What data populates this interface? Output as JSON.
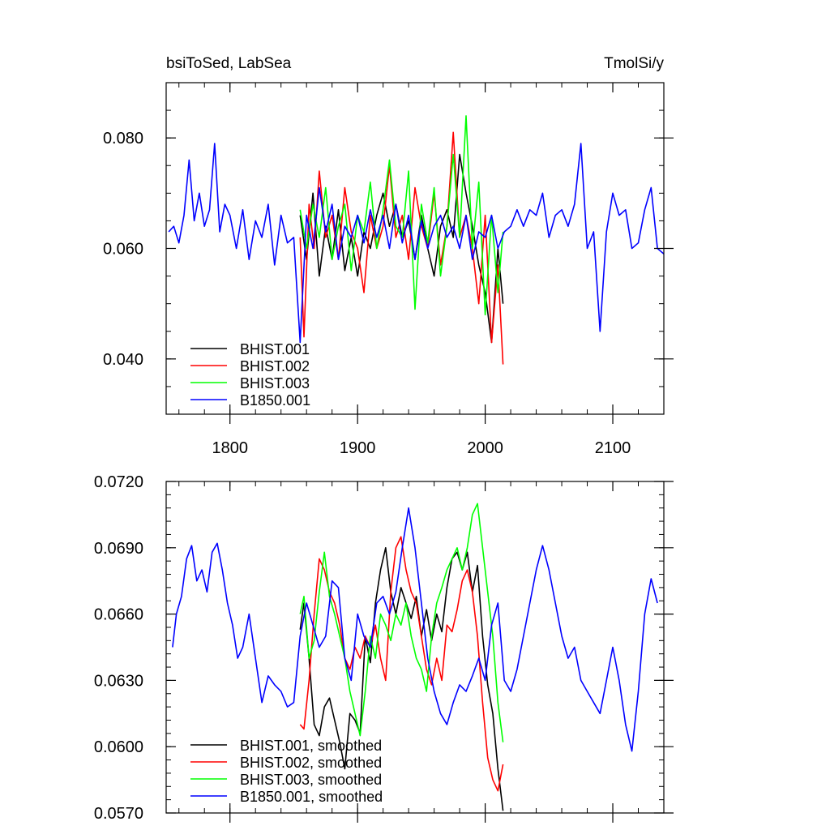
{
  "chart_data": [
    {
      "type": "line",
      "title_left": "bsiToSed, LabSea",
      "title_right": "TmolSi/y",
      "xlabel": "",
      "ylabel": "",
      "xlim": [
        1750,
        2140
      ],
      "ylim": [
        0.03,
        0.09
      ],
      "x_ticks": [
        1800,
        1900,
        2000,
        2100
      ],
      "x_tick_labels": [
        "1800",
        "1900",
        "2000",
        "2100"
      ],
      "y_ticks": [
        0.04,
        0.06,
        0.08
      ],
      "y_tick_labels": [
        "0.040",
        "0.060",
        "0.080"
      ],
      "grid": false,
      "legend_position": "bottom-left",
      "series": [
        {
          "name": "BHIST.001",
          "color": "#000000",
          "x": [
            1855,
            1860,
            1865,
            1870,
            1875,
            1880,
            1885,
            1890,
            1895,
            1900,
            1905,
            1910,
            1915,
            1920,
            1925,
            1930,
            1935,
            1940,
            1945,
            1950,
            1955,
            1960,
            1965,
            1970,
            1975,
            1980,
            1985,
            1990,
            1995,
            2000,
            2005,
            2010,
            2014
          ],
          "values": [
            0.066,
            0.058,
            0.07,
            0.055,
            0.064,
            0.058,
            0.067,
            0.056,
            0.062,
            0.055,
            0.063,
            0.06,
            0.066,
            0.07,
            0.064,
            0.068,
            0.062,
            0.065,
            0.058,
            0.066,
            0.06,
            0.055,
            0.064,
            0.067,
            0.062,
            0.077,
            0.07,
            0.064,
            0.057,
            0.052,
            0.043,
            0.06,
            0.05
          ]
        },
        {
          "name": "BHIST.002",
          "color": "#ff0000",
          "x": [
            1855,
            1858,
            1862,
            1866,
            1870,
            1875,
            1880,
            1885,
            1890,
            1895,
            1900,
            1905,
            1910,
            1915,
            1920,
            1925,
            1930,
            1935,
            1940,
            1945,
            1950,
            1955,
            1960,
            1965,
            1970,
            1975,
            1980,
            1985,
            1990,
            1995,
            2000,
            2005,
            2010,
            2014
          ],
          "values": [
            0.062,
            0.044,
            0.068,
            0.06,
            0.074,
            0.062,
            0.066,
            0.058,
            0.071,
            0.063,
            0.06,
            0.052,
            0.066,
            0.06,
            0.064,
            0.075,
            0.062,
            0.066,
            0.058,
            0.071,
            0.064,
            0.06,
            0.07,
            0.057,
            0.064,
            0.081,
            0.062,
            0.066,
            0.06,
            0.05,
            0.066,
            0.043,
            0.057,
            0.039
          ]
        },
        {
          "name": "BHIST.003",
          "color": "#00ff00",
          "x": [
            1855,
            1860,
            1865,
            1870,
            1875,
            1880,
            1885,
            1890,
            1895,
            1900,
            1905,
            1910,
            1915,
            1920,
            1925,
            1930,
            1935,
            1940,
            1945,
            1950,
            1955,
            1960,
            1965,
            1970,
            1975,
            1980,
            1985,
            1990,
            1995,
            2000,
            2005,
            2010,
            2014
          ],
          "values": [
            0.067,
            0.06,
            0.068,
            0.062,
            0.071,
            0.058,
            0.064,
            0.068,
            0.056,
            0.066,
            0.063,
            0.072,
            0.06,
            0.067,
            0.076,
            0.064,
            0.062,
            0.074,
            0.049,
            0.068,
            0.061,
            0.071,
            0.055,
            0.064,
            0.077,
            0.062,
            0.084,
            0.06,
            0.072,
            0.048,
            0.066,
            0.052,
            0.063
          ]
        },
        {
          "name": "B1850.001",
          "color": "#0000ff",
          "x": [
            1752,
            1756,
            1760,
            1764,
            1768,
            1772,
            1776,
            1780,
            1784,
            1788,
            1792,
            1796,
            1800,
            1805,
            1810,
            1815,
            1820,
            1825,
            1830,
            1835,
            1840,
            1845,
            1850,
            1855,
            1860,
            1865,
            1870,
            1875,
            1880,
            1885,
            1890,
            1895,
            1900,
            1905,
            1910,
            1915,
            1920,
            1925,
            1930,
            1935,
            1940,
            1945,
            1950,
            1955,
            1960,
            1965,
            1970,
            1975,
            1980,
            1985,
            1990,
            1995,
            2000,
            2005,
            2010,
            2015,
            2020,
            2025,
            2030,
            2035,
            2040,
            2045,
            2050,
            2055,
            2060,
            2065,
            2070,
            2075,
            2080,
            2085,
            2090,
            2095,
            2100,
            2105,
            2110,
            2115,
            2120,
            2125,
            2130,
            2135,
            2140
          ],
          "values": [
            0.063,
            0.064,
            0.061,
            0.066,
            0.076,
            0.065,
            0.07,
            0.064,
            0.067,
            0.079,
            0.063,
            0.068,
            0.066,
            0.06,
            0.067,
            0.058,
            0.065,
            0.062,
            0.068,
            0.057,
            0.066,
            0.061,
            0.062,
            0.043,
            0.066,
            0.06,
            0.071,
            0.063,
            0.068,
            0.058,
            0.064,
            0.062,
            0.066,
            0.061,
            0.067,
            0.062,
            0.066,
            0.06,
            0.068,
            0.061,
            0.066,
            0.058,
            0.065,
            0.06,
            0.064,
            0.066,
            0.062,
            0.064,
            0.06,
            0.066,
            0.058,
            0.063,
            0.062,
            0.066,
            0.06,
            0.063,
            0.064,
            0.067,
            0.064,
            0.067,
            0.066,
            0.07,
            0.062,
            0.066,
            0.067,
            0.064,
            0.068,
            0.079,
            0.06,
            0.063,
            0.045,
            0.063,
            0.07,
            0.066,
            0.067,
            0.06,
            0.061,
            0.067,
            0.071,
            0.06,
            0.059
          ]
        }
      ]
    },
    {
      "type": "line",
      "xlabel": "",
      "ylabel": "",
      "xlim": [
        1750,
        2140
      ],
      "ylim": [
        0.057,
        0.072
      ],
      "x_ticks": [
        1800,
        1900,
        2000,
        2100
      ],
      "y_ticks": [
        0.057,
        0.06,
        0.063,
        0.066,
        0.069,
        0.072
      ],
      "y_tick_labels": [
        "0.0570",
        "0.0600",
        "0.0630",
        "0.0660",
        "0.0690",
        "0.0720"
      ],
      "grid": false,
      "legend_position": "bottom-left",
      "series": [
        {
          "name": "BHIST.001, smoothed",
          "color": "#000000",
          "x": [
            1855,
            1858,
            1862,
            1866,
            1870,
            1874,
            1878,
            1882,
            1886,
            1890,
            1894,
            1898,
            1902,
            1906,
            1910,
            1914,
            1918,
            1922,
            1926,
            1930,
            1934,
            1938,
            1942,
            1946,
            1950,
            1954,
            1958,
            1962,
            1966,
            1970,
            1974,
            1978,
            1982,
            1986,
            1990,
            1994,
            1998,
            2002,
            2006,
            2010,
            2014
          ],
          "values": [
            0.0653,
            0.0665,
            0.064,
            0.061,
            0.0605,
            0.0618,
            0.0622,
            0.0612,
            0.0602,
            0.059,
            0.0615,
            0.0612,
            0.0606,
            0.065,
            0.0638,
            0.0665,
            0.068,
            0.069,
            0.067,
            0.066,
            0.0672,
            0.0665,
            0.0658,
            0.0668,
            0.065,
            0.0662,
            0.0648,
            0.066,
            0.0652,
            0.0672,
            0.0685,
            0.0688,
            0.068,
            0.0688,
            0.067,
            0.0682,
            0.065,
            0.0628,
            0.0615,
            0.059,
            0.0571
          ]
        },
        {
          "name": "BHIST.002, smoothed",
          "color": "#ff0000",
          "x": [
            1855,
            1858,
            1862,
            1866,
            1870,
            1874,
            1878,
            1882,
            1886,
            1890,
            1894,
            1898,
            1902,
            1906,
            1910,
            1914,
            1918,
            1922,
            1926,
            1930,
            1934,
            1938,
            1942,
            1946,
            1950,
            1954,
            1958,
            1962,
            1966,
            1970,
            1974,
            1978,
            1982,
            1986,
            1990,
            1994,
            1998,
            2002,
            2006,
            2010,
            2014
          ],
          "values": [
            0.061,
            0.0608,
            0.063,
            0.066,
            0.0685,
            0.068,
            0.067,
            0.0665,
            0.0655,
            0.064,
            0.0635,
            0.0645,
            0.064,
            0.065,
            0.0645,
            0.0655,
            0.064,
            0.063,
            0.067,
            0.069,
            0.0695,
            0.068,
            0.067,
            0.0665,
            0.065,
            0.0635,
            0.0628,
            0.064,
            0.063,
            0.0655,
            0.0652,
            0.0662,
            0.0675,
            0.068,
            0.067,
            0.065,
            0.062,
            0.0595,
            0.0585,
            0.058,
            0.0592
          ]
        },
        {
          "name": "BHIST.003, smoothed",
          "color": "#00ff00",
          "x": [
            1855,
            1858,
            1862,
            1866,
            1870,
            1874,
            1878,
            1882,
            1886,
            1890,
            1894,
            1898,
            1902,
            1906,
            1910,
            1914,
            1918,
            1922,
            1926,
            1930,
            1934,
            1938,
            1942,
            1946,
            1950,
            1954,
            1958,
            1962,
            1966,
            1970,
            1974,
            1978,
            1982,
            1986,
            1990,
            1994,
            1998,
            2002,
            2006,
            2010,
            2014
          ],
          "values": [
            0.066,
            0.0668,
            0.064,
            0.0648,
            0.067,
            0.0688,
            0.0668,
            0.066,
            0.065,
            0.064,
            0.0625,
            0.0615,
            0.0605,
            0.0625,
            0.065,
            0.064,
            0.066,
            0.0655,
            0.0648,
            0.066,
            0.0655,
            0.0665,
            0.065,
            0.064,
            0.0635,
            0.0625,
            0.065,
            0.0665,
            0.0672,
            0.068,
            0.0685,
            0.069,
            0.068,
            0.069,
            0.0705,
            0.071,
            0.069,
            0.067,
            0.065,
            0.062,
            0.0602
          ]
        },
        {
          "name": "B1850.001, smoothed",
          "color": "#0000ff",
          "x": [
            1755,
            1758,
            1762,
            1766,
            1770,
            1774,
            1778,
            1782,
            1786,
            1790,
            1794,
            1798,
            1802,
            1806,
            1810,
            1815,
            1820,
            1825,
            1830,
            1835,
            1840,
            1845,
            1850,
            1855,
            1860,
            1865,
            1870,
            1875,
            1880,
            1885,
            1890,
            1895,
            1900,
            1905,
            1910,
            1915,
            1920,
            1925,
            1930,
            1935,
            1940,
            1945,
            1950,
            1955,
            1960,
            1965,
            1970,
            1975,
            1980,
            1985,
            1990,
            1995,
            2000,
            2005,
            2010,
            2015,
            2020,
            2025,
            2030,
            2035,
            2040,
            2045,
            2050,
            2055,
            2060,
            2065,
            2070,
            2075,
            2080,
            2085,
            2090,
            2095,
            2100,
            2105,
            2110,
            2115,
            2120,
            2125,
            2130,
            2135
          ],
          "values": [
            0.0645,
            0.066,
            0.0668,
            0.0685,
            0.0691,
            0.0675,
            0.068,
            0.067,
            0.0688,
            0.0692,
            0.068,
            0.0665,
            0.0655,
            0.064,
            0.0645,
            0.066,
            0.064,
            0.062,
            0.0632,
            0.0628,
            0.0625,
            0.0618,
            0.062,
            0.065,
            0.0665,
            0.0655,
            0.0645,
            0.065,
            0.0675,
            0.0672,
            0.064,
            0.063,
            0.066,
            0.065,
            0.0645,
            0.0665,
            0.0668,
            0.066,
            0.067,
            0.069,
            0.0708,
            0.069,
            0.0665,
            0.064,
            0.0625,
            0.0615,
            0.061,
            0.062,
            0.0628,
            0.0625,
            0.0632,
            0.064,
            0.063,
            0.0655,
            0.0665,
            0.063,
            0.0625,
            0.0635,
            0.065,
            0.0665,
            0.068,
            0.0691,
            0.068,
            0.0665,
            0.065,
            0.064,
            0.0645,
            0.063,
            0.0625,
            0.062,
            0.0615,
            0.063,
            0.0645,
            0.063,
            0.061,
            0.0598,
            0.0625,
            0.066,
            0.0676,
            0.0665
          ]
        }
      ]
    }
  ]
}
